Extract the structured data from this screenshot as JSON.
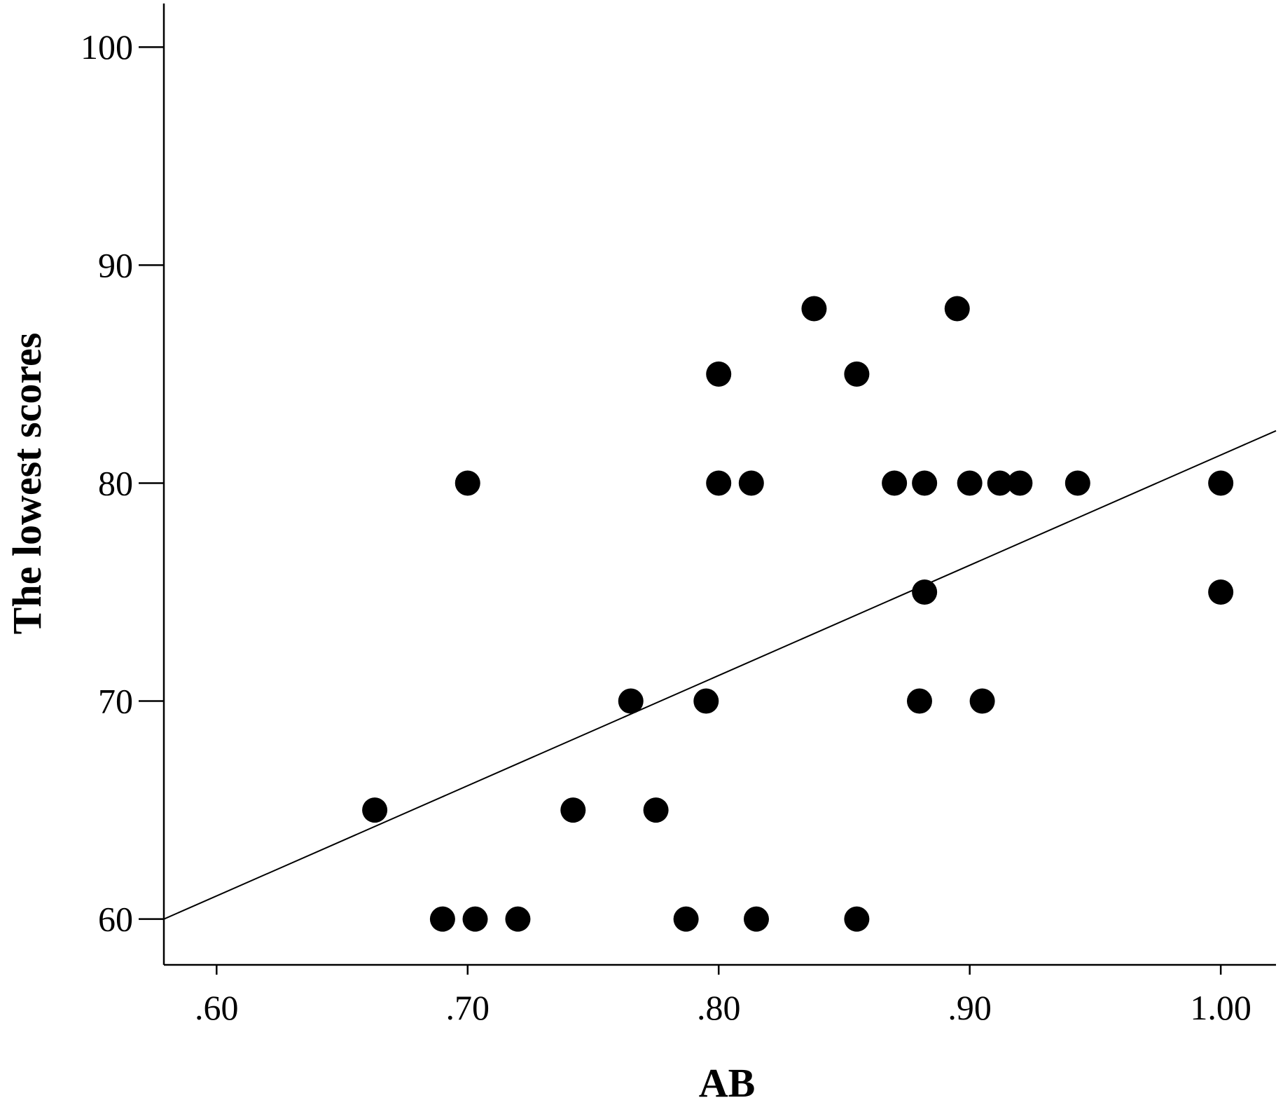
{
  "chart_data": {
    "type": "scatter",
    "title": "",
    "xlabel": "AB",
    "ylabel": "The lowest scores",
    "xlim": [
      0.579,
      1.022
    ],
    "ylim": [
      57.9,
      102.0
    ],
    "x_ticks": [
      0.6,
      0.7,
      0.8,
      0.9,
      1.0
    ],
    "x_tick_labels": [
      ".60",
      ".70",
      ".80",
      ".90",
      "1.00"
    ],
    "y_ticks": [
      60,
      70,
      80,
      90,
      100
    ],
    "y_tick_labels": [
      "60",
      "70",
      "80",
      "90",
      "100"
    ],
    "grid": false,
    "legend": "none",
    "points": [
      {
        "x": 0.663,
        "y": 65
      },
      {
        "x": 0.69,
        "y": 60
      },
      {
        "x": 0.703,
        "y": 60
      },
      {
        "x": 0.72,
        "y": 60
      },
      {
        "x": 0.7,
        "y": 80
      },
      {
        "x": 0.742,
        "y": 65
      },
      {
        "x": 0.765,
        "y": 70
      },
      {
        "x": 0.775,
        "y": 65
      },
      {
        "x": 0.787,
        "y": 60
      },
      {
        "x": 0.795,
        "y": 70
      },
      {
        "x": 0.8,
        "y": 85
      },
      {
        "x": 0.8,
        "y": 80
      },
      {
        "x": 0.813,
        "y": 80
      },
      {
        "x": 0.815,
        "y": 60
      },
      {
        "x": 0.838,
        "y": 88
      },
      {
        "x": 0.855,
        "y": 85
      },
      {
        "x": 0.855,
        "y": 60
      },
      {
        "x": 0.87,
        "y": 80
      },
      {
        "x": 0.88,
        "y": 70
      },
      {
        "x": 0.882,
        "y": 80
      },
      {
        "x": 0.882,
        "y": 75
      },
      {
        "x": 0.895,
        "y": 88
      },
      {
        "x": 0.9,
        "y": 80
      },
      {
        "x": 0.905,
        "y": 70
      },
      {
        "x": 0.912,
        "y": 80
      },
      {
        "x": 0.92,
        "y": 80
      },
      {
        "x": 0.943,
        "y": 80
      },
      {
        "x": 1.0,
        "y": 80
      },
      {
        "x": 1.0,
        "y": 75
      }
    ],
    "fit_line": {
      "x": [
        0.579,
        1.022
      ],
      "y": [
        60.0,
        82.4
      ]
    }
  }
}
